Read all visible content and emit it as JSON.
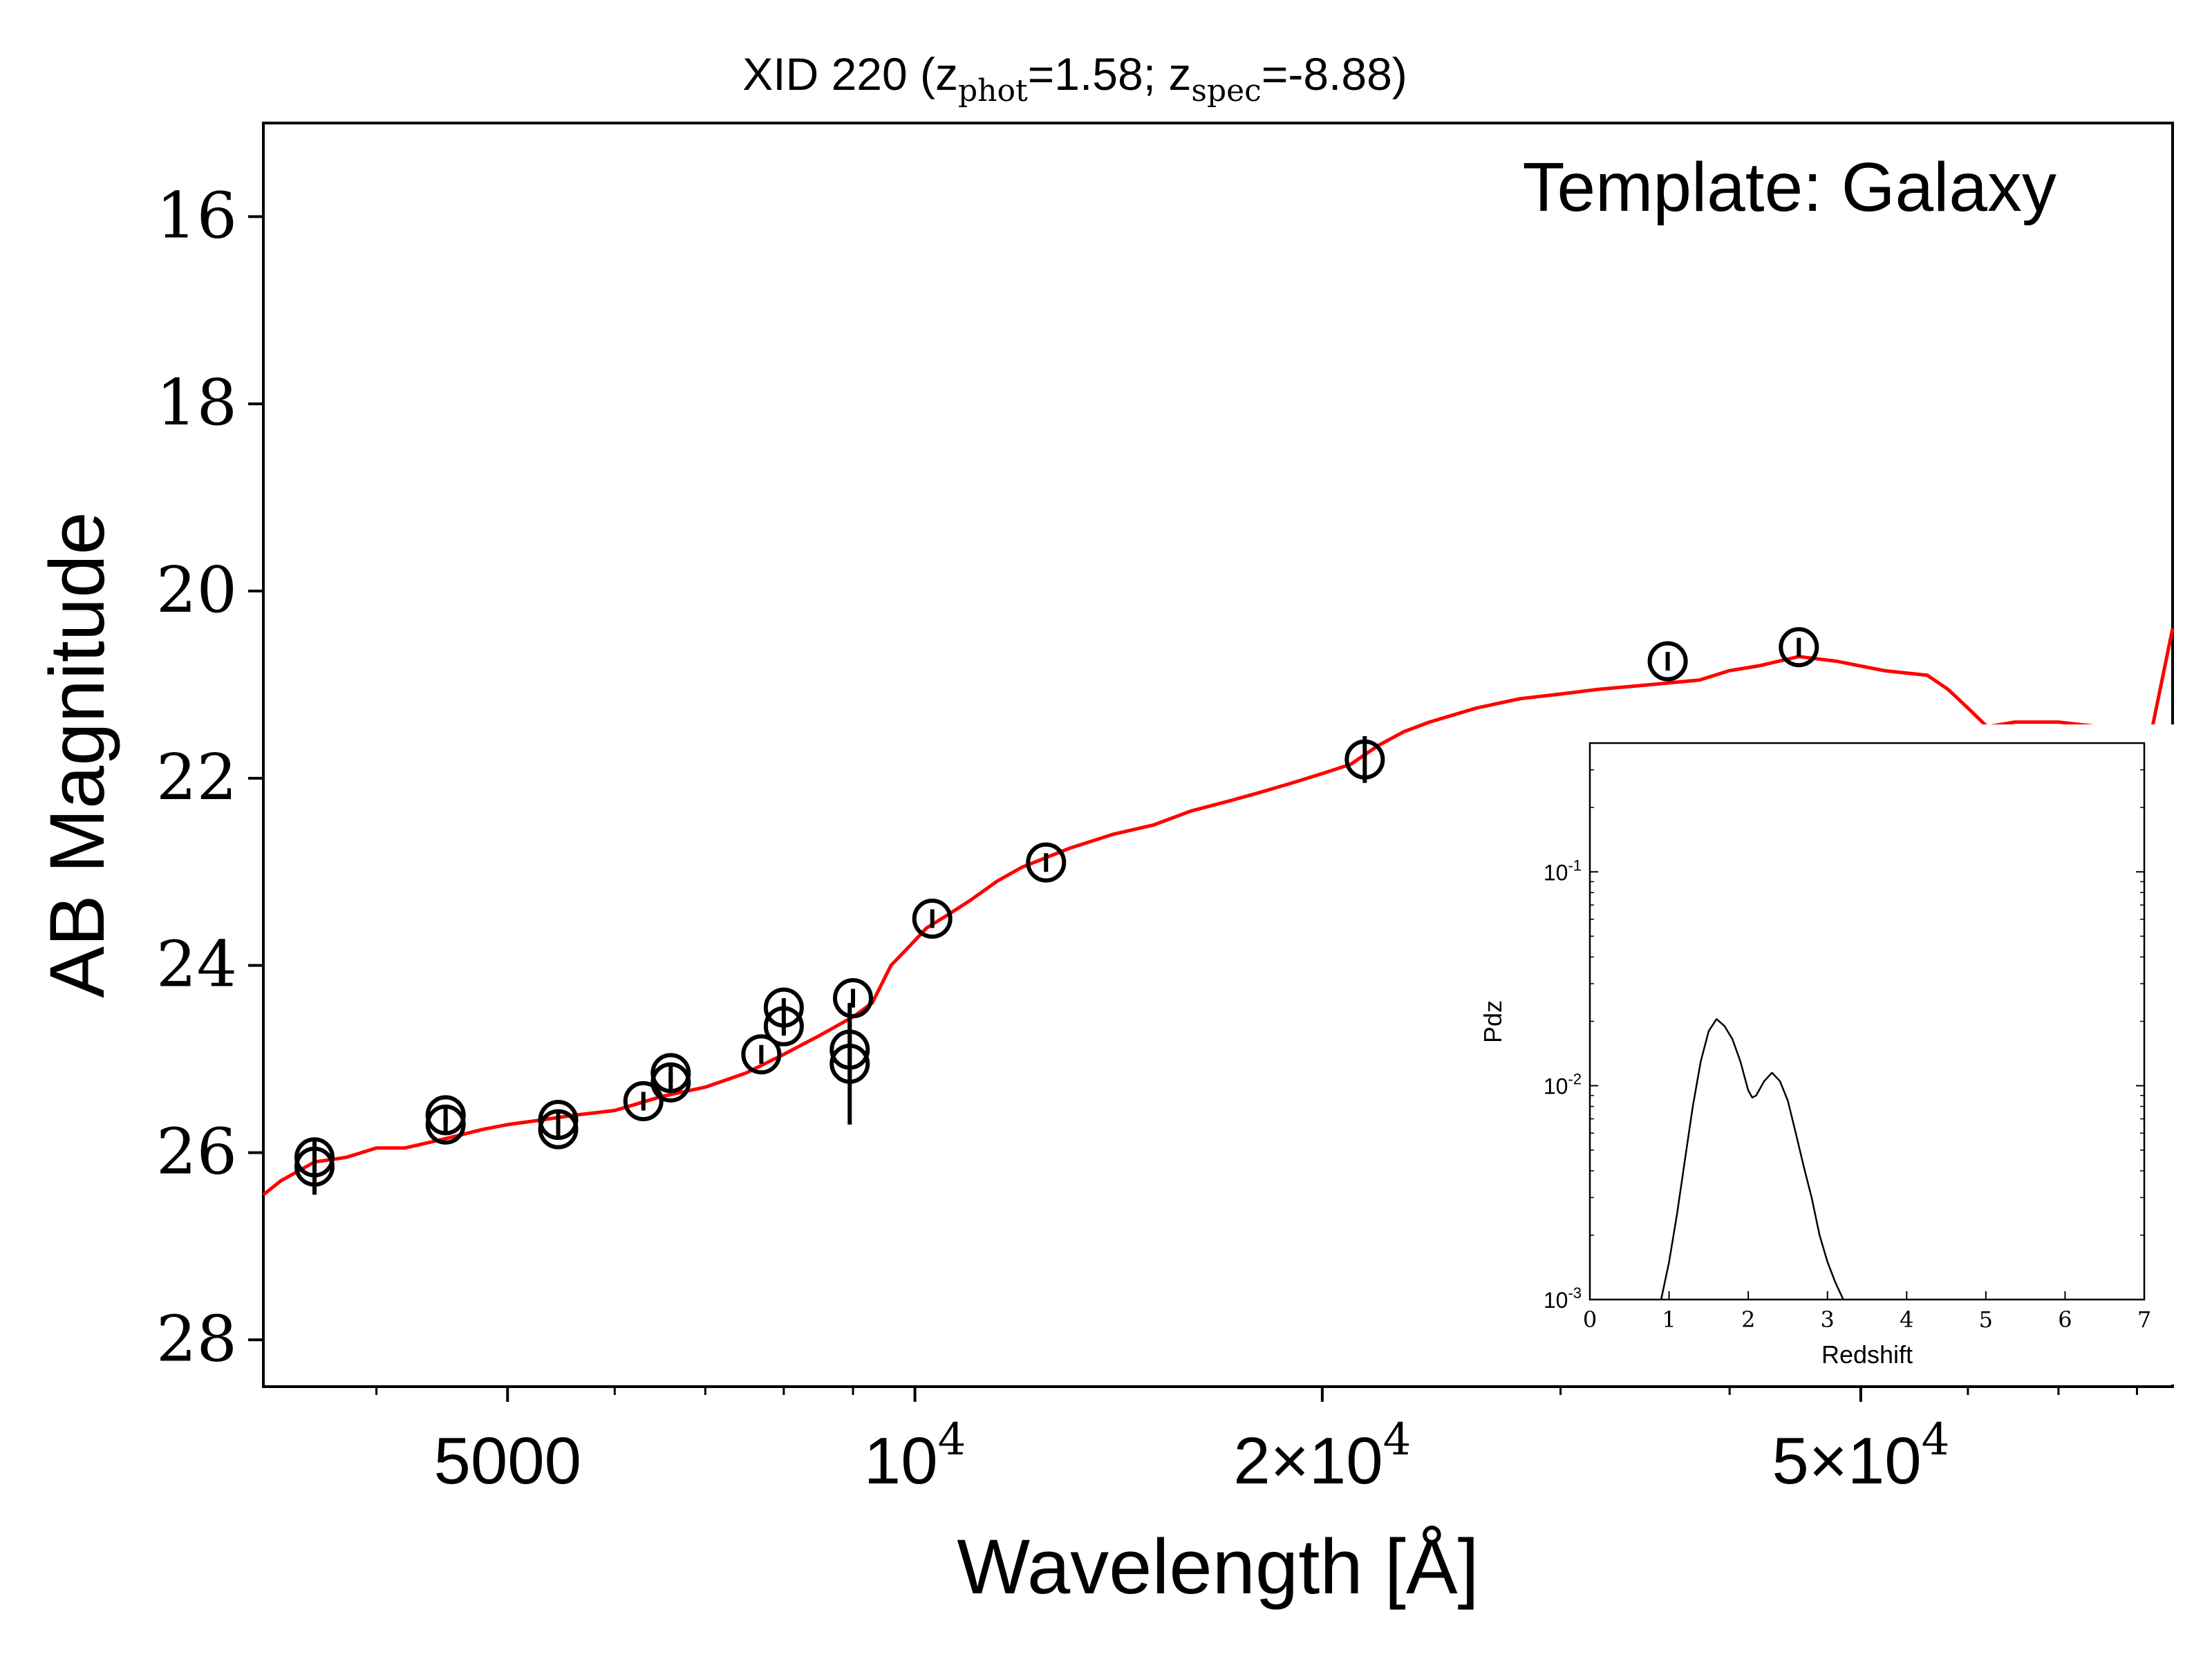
{
  "chart_data": [
    {
      "type": "scatter",
      "title": "XID 220 (z_phot=1.58; z_spec=-8.88)",
      "title_parts": {
        "prefix": "XID 220 (z",
        "sub1": "phot",
        "mid": "=1.58; z",
        "sub2": "spec",
        "suffix": "=-8.88)"
      },
      "annotation": "Template: Galaxy",
      "xlabel": "Wavelength [Å]",
      "ylabel": "AB Magnitude",
      "xscale": "log",
      "xlim": [
        3300,
        85000
      ],
      "ylim": [
        28.5,
        15.0
      ],
      "y_inverted": true,
      "x_ticks": [
        {
          "value": 5000,
          "label": "5000"
        },
        {
          "value": 10000,
          "label": "10",
          "sup": "4"
        },
        {
          "value": 20000,
          "label": "2×10",
          "sup": "4"
        },
        {
          "value": 50000,
          "label": "5×10",
          "sup": "4"
        }
      ],
      "y_ticks": [
        16,
        18,
        20,
        22,
        24,
        26,
        28
      ],
      "grid": false,
      "model_color": "#ff0000",
      "series": [
        {
          "kind": "points",
          "marker": "open-circle",
          "color": "#000000",
          "points": [
            {
              "x": 3600,
              "y": 26.05,
              "err": 0.2
            },
            {
              "x": 3600,
              "y": 26.15,
              "err": 0.3
            },
            {
              "x": 4500,
              "y": 25.6,
              "err": 0.1
            },
            {
              "x": 4500,
              "y": 25.7,
              "err": 0.1
            },
            {
              "x": 5450,
              "y": 25.65,
              "err": 0.1
            },
            {
              "x": 5450,
              "y": 25.75,
              "err": 0.1
            },
            {
              "x": 6300,
              "y": 25.45,
              "err": 0.1
            },
            {
              "x": 6600,
              "y": 25.15,
              "err": 0.1
            },
            {
              "x": 6600,
              "y": 25.25,
              "err": 0.1
            },
            {
              "x": 7700,
              "y": 24.95,
              "err": 0.1
            },
            {
              "x": 8000,
              "y": 24.45,
              "err": 0.1
            },
            {
              "x": 8000,
              "y": 24.65,
              "err": 0.1
            },
            {
              "x": 9000,
              "y": 24.35,
              "err": 0.1
            },
            {
              "x": 8950,
              "y": 24.9,
              "err": 0.3
            },
            {
              "x": 8950,
              "y": 25.05,
              "err": 0.65
            },
            {
              "x": 10300,
              "y": 23.5,
              "err": 0.1
            },
            {
              "x": 12500,
              "y": 22.9,
              "err": 0.1
            },
            {
              "x": 21500,
              "y": 21.8,
              "err": 0.25
            },
            {
              "x": 36000,
              "y": 20.75,
              "err": 0.1
            },
            {
              "x": 45000,
              "y": 20.6,
              "err": 0.1
            }
          ]
        },
        {
          "kind": "line",
          "color": "#ff0000",
          "x": [
            3300,
            3400,
            3500,
            3600,
            3800,
            4000,
            4200,
            4500,
            4800,
            5000,
            5300,
            5600,
            6000,
            6500,
            7000,
            7500,
            8000,
            8500,
            9000,
            9300,
            9600,
            9900,
            10200,
            10600,
            11000,
            11500,
            12000,
            13000,
            14000,
            15000,
            16000,
            17000,
            18000,
            19000,
            20000,
            21000,
            22000,
            23000,
            24000,
            26000,
            28000,
            30000,
            32000,
            35000,
            38000,
            40000,
            42000,
            45000,
            48000,
            52000,
            56000,
            58000,
            60000,
            62000,
            65000,
            70000,
            75000,
            80000,
            82000,
            85000
          ],
          "y": [
            26.45,
            26.3,
            26.2,
            26.1,
            26.05,
            25.95,
            25.95,
            25.85,
            25.75,
            25.7,
            25.65,
            25.6,
            25.55,
            25.4,
            25.3,
            25.15,
            24.95,
            24.75,
            24.55,
            24.4,
            24.0,
            23.8,
            23.6,
            23.45,
            23.3,
            23.1,
            22.95,
            22.75,
            22.6,
            22.5,
            22.35,
            22.25,
            22.15,
            22.05,
            21.95,
            21.85,
            21.65,
            21.5,
            21.4,
            21.25,
            21.15,
            21.1,
            21.05,
            21.0,
            20.95,
            20.85,
            20.8,
            20.7,
            20.75,
            20.85,
            20.9,
            21.05,
            21.25,
            21.45,
            21.4,
            21.4,
            21.45,
            21.5,
            21.5,
            20.4
          ]
        }
      ]
    },
    {
      "type": "line",
      "title": "",
      "xlabel": "Redshift",
      "ylabel": "Pdz",
      "xscale": "linear",
      "yscale": "log",
      "xlim": [
        0,
        7
      ],
      "ylim": [
        0.001,
        0.4
      ],
      "x_ticks": [
        "0",
        "1",
        "2",
        "3",
        "4",
        "5",
        "6",
        "7"
      ],
      "y_ticks": [
        {
          "value": 0.1,
          "exp": "-1"
        },
        {
          "value": 0.01,
          "exp": "-2"
        },
        {
          "value": 0.001,
          "exp": "-3"
        }
      ],
      "y_tick_base": "10",
      "grid": false,
      "series": [
        {
          "color": "#000000",
          "x": [
            0.9,
            1.0,
            1.1,
            1.2,
            1.3,
            1.4,
            1.5,
            1.6,
            1.7,
            1.8,
            1.9,
            2.0,
            2.05,
            2.1,
            2.2,
            2.3,
            2.4,
            2.5,
            2.6,
            2.7,
            2.8,
            2.9,
            3.0,
            3.1,
            3.2
          ],
          "y": [
            0.001,
            0.0015,
            0.0025,
            0.0045,
            0.008,
            0.013,
            0.018,
            0.0205,
            0.019,
            0.0165,
            0.013,
            0.0095,
            0.0088,
            0.009,
            0.0105,
            0.0115,
            0.0105,
            0.0085,
            0.006,
            0.0042,
            0.003,
            0.002,
            0.0015,
            0.0012,
            0.001
          ]
        }
      ]
    }
  ]
}
